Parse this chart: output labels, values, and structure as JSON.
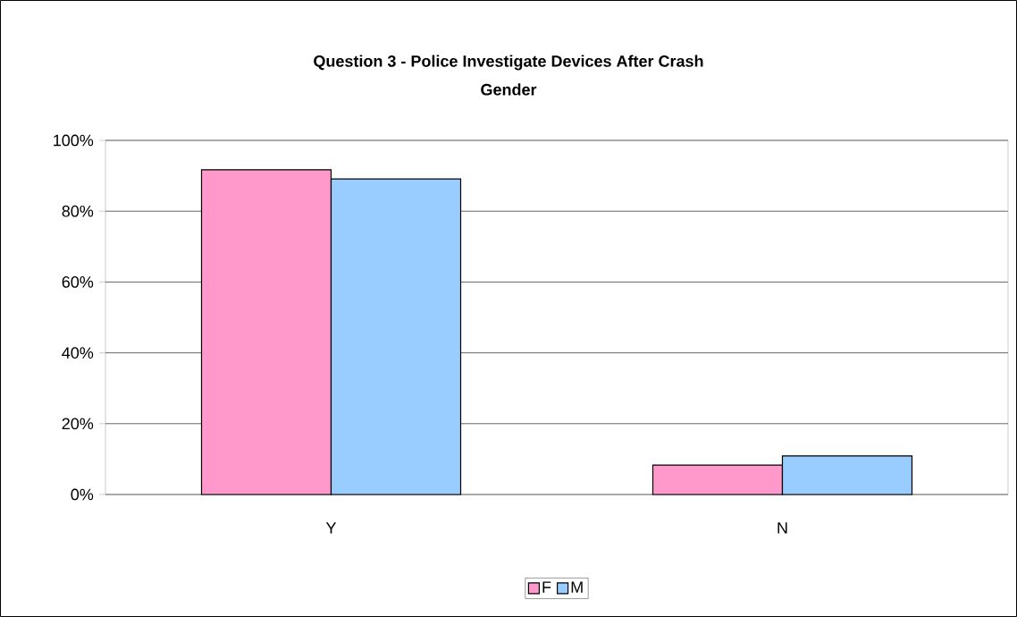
{
  "chart_data": {
    "type": "bar",
    "title": "Question 3 - Police Investigate Devices After Crash",
    "subtitle": "Gender",
    "categories": [
      "Y",
      "N"
    ],
    "series": [
      {
        "name": "F",
        "color": "#ff99cc",
        "values": [
          91.7,
          8.3
        ]
      },
      {
        "name": "M",
        "color": "#99ccff",
        "values": [
          89.1,
          10.9
        ]
      }
    ],
    "ylim": [
      0,
      100
    ],
    "yticks": [
      {
        "value": 0,
        "label": "0%"
      },
      {
        "value": 20,
        "label": "20%"
      },
      {
        "value": 40,
        "label": "40%"
      },
      {
        "value": 60,
        "label": "60%"
      },
      {
        "value": 80,
        "label": "80%"
      },
      {
        "value": 100,
        "label": "100%"
      }
    ],
    "grid": "y",
    "legend": "bottom"
  }
}
